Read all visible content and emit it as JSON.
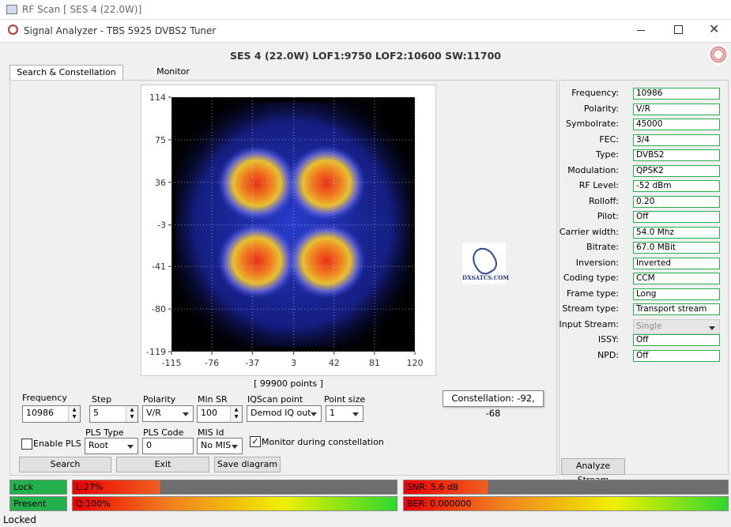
{
  "outer_window": {
    "title": "RF Scan [ SES 4 (22.0W)]"
  },
  "window": {
    "title": "Signal Analyzer - TBS 5925 DVBS2 Tuner"
  },
  "header": {
    "title": "SES 4 (22.0W) LOF1:9750 LOF2:10600 SW:11700"
  },
  "tabs": [
    "Search & Constellation",
    "Monitor"
  ],
  "constellation": {
    "yticks": [
      114,
      75,
      36,
      -3,
      -41,
      -80,
      -119
    ],
    "xticks": [
      -115,
      -76,
      -37,
      3,
      42,
      81,
      120
    ],
    "points_label": "[ 99900 points ]",
    "logo": "DXSATCS.COM"
  },
  "tooltip": "Constellation: -92, -68",
  "info": {
    "rows": [
      {
        "label": "Frequency:",
        "value": "10986"
      },
      {
        "label": "Polarity:",
        "value": "V/R"
      },
      {
        "label": "Symbolrate:",
        "value": "45000"
      },
      {
        "label": "FEC:",
        "value": "3/4"
      },
      {
        "label": "Type:",
        "value": "DVBS2"
      },
      {
        "label": "Modulation:",
        "value": "QPSK2"
      },
      {
        "label": "RF Level:",
        "value": "-52 dBm"
      },
      {
        "label": "Rolloff:",
        "value": "0.20"
      },
      {
        "label": "Pilot:",
        "value": "Off"
      },
      {
        "label": "Carrier width:",
        "value": "54.0 Mhz"
      },
      {
        "label": "Bitrate:",
        "value": "67.0 MBit"
      },
      {
        "label": "Inversion:",
        "value": "Inverted"
      },
      {
        "label": "Coding type:",
        "value": "CCM"
      },
      {
        "label": "Frame type:",
        "value": "Long"
      },
      {
        "label": "Stream type:",
        "value": "Transport stream"
      },
      {
        "label": "Input Stream:",
        "value": "Single"
      },
      {
        "label": "ISSY:",
        "value": "Off"
      },
      {
        "label": "NPD:",
        "value": "Off"
      }
    ]
  },
  "controls": {
    "frequency": {
      "label": "Frequency",
      "value": "10986"
    },
    "step": {
      "label": "Step",
      "value": "5"
    },
    "polarity": {
      "label": "Polarity",
      "value": "V/R"
    },
    "min_sr": {
      "label": "Min SR",
      "value": "100"
    },
    "iqscan": {
      "label": "IQScan point",
      "value": "Demod IQ out"
    },
    "point_size": {
      "label": "Point size",
      "value": "1"
    },
    "enable_pls": "Enable PLS",
    "pls_type": {
      "label": "PLS Type",
      "value": "Root"
    },
    "pls_code": {
      "label": "PLS Code",
      "value": "0"
    },
    "mis_id": {
      "label": "MIS Id",
      "value": "No MIS"
    },
    "monitor": "Monitor during constellation"
  },
  "buttons": [
    "Search",
    "Exit",
    "Save diagram",
    "Analyze Stream"
  ],
  "status": {
    "lock": "Lock",
    "present": "Present",
    "level": "L:27%",
    "snr": "SNR: 5.6 dB",
    "quality": "Q:100%",
    "ber": "BER: 0.000000",
    "bottom": "Locked"
  }
}
